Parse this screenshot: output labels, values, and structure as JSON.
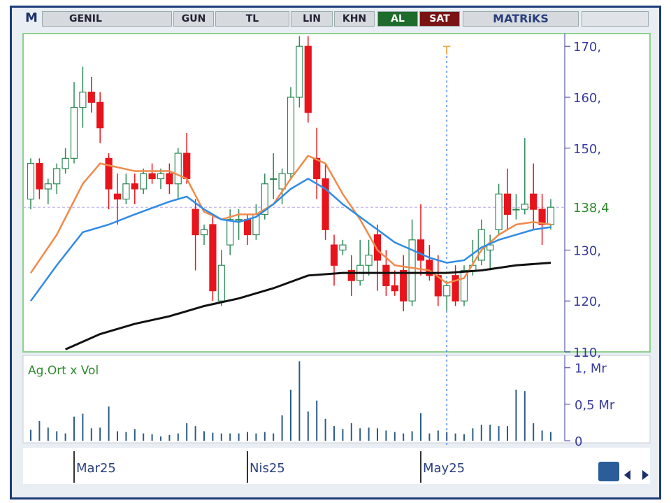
{
  "toolbar": {
    "logo": "M",
    "symbol": "GENIL",
    "period": "GUN",
    "currency": "TL",
    "scale": "LIN",
    "style": "KHN",
    "buy": "AL",
    "sell": "SAT",
    "brand": "MATRiKS"
  },
  "chart_data": {
    "type": "candlestick",
    "categories": [
      null,
      null,
      null,
      null,
      null,
      "Mar25",
      null,
      null,
      null,
      null,
      null,
      null,
      null,
      null,
      null,
      null,
      null,
      null,
      null,
      null,
      null,
      null,
      null,
      null,
      null,
      "Nis25",
      null,
      null,
      null,
      null,
      null,
      null,
      null,
      null,
      null,
      null,
      null,
      null,
      null,
      null,
      null,
      null,
      null,
      null,
      null,
      "May25",
      null,
      null,
      null,
      null,
      null,
      null,
      null,
      null,
      null,
      null,
      null,
      null,
      null,
      null,
      null
    ],
    "open": [
      140,
      147,
      142,
      143,
      146,
      148,
      158,
      161,
      159,
      148,
      141,
      140,
      143,
      142,
      145,
      144,
      145,
      143,
      149,
      138,
      133,
      135,
      120,
      131,
      136,
      136,
      133,
      137,
      144,
      142,
      145,
      160,
      170,
      148,
      144,
      131,
      130,
      126,
      124,
      127,
      133,
      127,
      123,
      126,
      120,
      132,
      128,
      125,
      121,
      125,
      120,
      126,
      128,
      130,
      134,
      141,
      138,
      138,
      141,
      138,
      135
    ],
    "high": [
      148,
      148,
      144,
      147,
      150,
      163,
      166,
      164,
      161,
      149,
      145,
      145,
      145,
      146,
      147,
      146,
      147,
      150,
      153,
      140,
      135,
      137,
      130,
      138,
      138,
      137,
      139,
      145,
      149,
      146,
      162,
      172,
      172,
      154,
      147,
      133,
      132,
      129,
      132,
      132,
      135,
      130,
      126,
      129,
      136,
      139,
      131,
      129,
      124,
      127,
      127,
      132,
      136,
      133,
      143,
      146,
      141,
      152,
      147,
      141,
      140
    ],
    "low": [
      138,
      140,
      139,
      141,
      145,
      147,
      154,
      157,
      151,
      138,
      135,
      139,
      139,
      141,
      143,
      142,
      141,
      140,
      143,
      126,
      131,
      120,
      119,
      129,
      132,
      131,
      132,
      136,
      140,
      139,
      144,
      158,
      155,
      140,
      132,
      123,
      129,
      121,
      123,
      125,
      122,
      121,
      121,
      118,
      119,
      125,
      124,
      119,
      118,
      119,
      119,
      125,
      127,
      126,
      133,
      134,
      136,
      137,
      134,
      131,
      134
    ],
    "close": [
      147,
      142,
      143,
      146,
      148,
      158,
      161,
      159,
      154,
      142,
      140,
      143,
      142,
      145,
      144,
      145,
      143,
      149,
      144,
      133,
      134,
      122,
      127,
      136,
      136,
      133,
      137,
      143,
      144,
      145,
      160,
      170,
      157,
      144,
      134,
      127,
      131,
      124,
      127,
      129,
      128,
      123,
      122,
      120,
      132,
      128,
      125,
      121,
      123,
      120,
      126,
      127,
      134,
      131,
      141,
      137,
      138,
      139,
      138,
      135,
      138.4
    ],
    "up_color": "#2e8b57",
    "down_color": "#e8141c",
    "series": [
      {
        "color": "#f08a4b",
        "x": [
          0,
          3,
          6,
          8,
          12,
          16,
          18,
          20,
          22,
          24,
          26,
          28,
          30,
          32,
          34,
          36,
          38,
          40,
          42,
          44,
          46,
          48,
          50,
          52,
          54,
          56,
          58,
          60
        ],
        "values": [
          125.5,
          133,
          143,
          147,
          145.5,
          145.5,
          144,
          137.5,
          136,
          137,
          137,
          139,
          144,
          148.5,
          147,
          141,
          136,
          130,
          127,
          126.5,
          126,
          123.5,
          124.5,
          130,
          133,
          135,
          135.5,
          135
        ]
      },
      {
        "color": "#2f8be6",
        "x": [
          0,
          3,
          6,
          9,
          12,
          16,
          18,
          20,
          22,
          24,
          26,
          28,
          30,
          32,
          34,
          36,
          38,
          40,
          42,
          44,
          46,
          48,
          50,
          52,
          54,
          56,
          58,
          60
        ],
        "values": [
          120,
          127,
          133.5,
          135,
          137,
          139.5,
          140.5,
          138,
          136,
          135.5,
          136.5,
          139,
          142,
          144,
          142,
          139,
          136.5,
          134,
          131.5,
          130,
          128.5,
          127.5,
          128,
          130.5,
          132,
          133,
          134,
          134.5
        ]
      },
      {
        "color": "#111111",
        "x": [
          4,
          8,
          12,
          16,
          20,
          24,
          28,
          32,
          36,
          40,
          44,
          48,
          52,
          56,
          60
        ],
        "values": [
          110.5,
          113.5,
          115.5,
          117,
          119,
          120.5,
          122.5,
          125,
          125.5,
          125.5,
          125.5,
          125.5,
          126,
          127,
          127.5
        ]
      }
    ],
    "ylim": [
      110,
      172.5
    ],
    "yticks": [
      {
        "value": 110,
        "label": "110,"
      },
      {
        "value": 120,
        "label": "120,"
      },
      {
        "value": 130,
        "label": "130,"
      },
      {
        "value": 150,
        "label": "150,"
      },
      {
        "value": 160,
        "label": "160,"
      },
      {
        "value": 170,
        "label": "170,"
      }
    ],
    "last_price": {
      "value": 138.4,
      "label": "138,4"
    },
    "marker": {
      "x": 48,
      "label": "T"
    },
    "volume": {
      "label": "Ag.Ort x Vol",
      "color": "#2b5c8a",
      "ylim": [
        0,
        1.17
      ],
      "yticks": [
        0,
        {
          "value": 0.5,
          "label": "0,5 Mr"
        },
        {
          "value": 1,
          "label": "1, Mr"
        }
      ],
      "values": [
        0.15,
        0.27,
        0.18,
        0.13,
        0.1,
        0.33,
        0.37,
        0.17,
        0.18,
        0.47,
        0.13,
        0.12,
        0.16,
        0.1,
        0.09,
        0.06,
        0.08,
        0.1,
        0.24,
        0.2,
        0.13,
        0.11,
        0.1,
        0.1,
        0.1,
        0.12,
        0.1,
        0.12,
        0.1,
        0.35,
        0.7,
        1.09,
        0.4,
        0.55,
        0.3,
        0.2,
        0.16,
        0.24,
        0.17,
        0.18,
        0.17,
        0.14,
        0.12,
        0.1,
        0.13,
        0.38,
        0.1,
        0.14,
        0.12,
        0.1,
        0.09,
        0.17,
        0.22,
        0.22,
        0.2,
        0.2,
        0.7,
        0.68,
        0.24,
        0.14,
        0.12
      ]
    }
  }
}
